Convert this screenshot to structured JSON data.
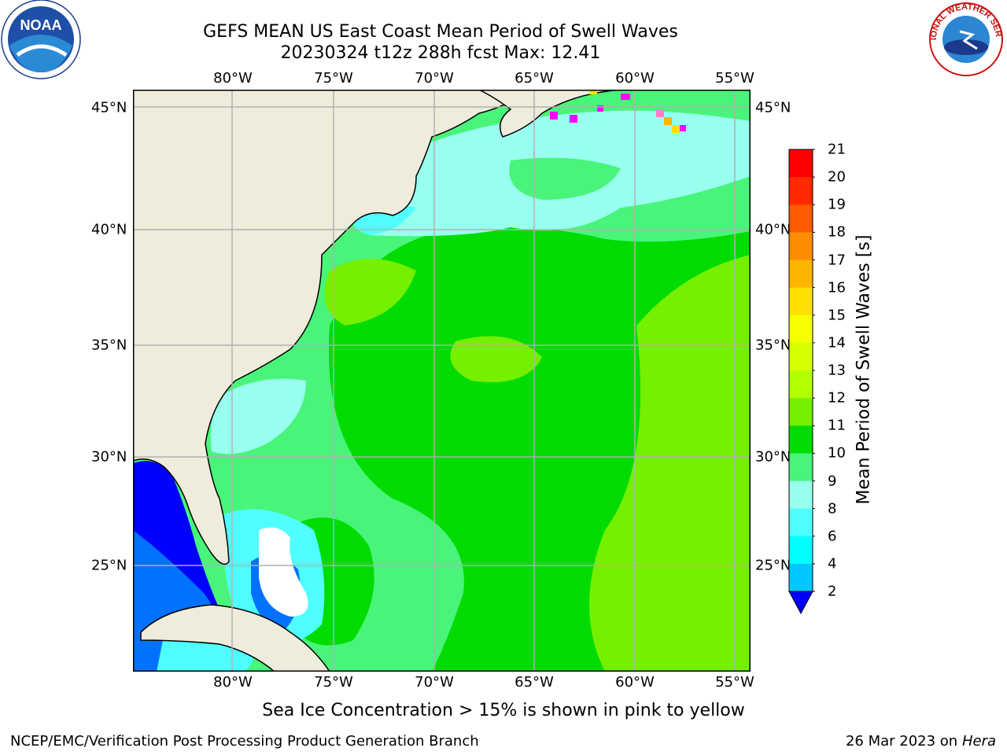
{
  "header": {
    "title_line1": "GEFS MEAN US East Coast Mean Period of Swell Waves",
    "title_line2": "20230324 t12z 288h fcst   Max: 12.41"
  },
  "map": {
    "lon_labels": [
      "80°W",
      "75°W",
      "70°W",
      "65°W",
      "60°W",
      "55°W"
    ],
    "lat_labels": [
      "45°N",
      "40°N",
      "35°N",
      "30°N",
      "25°N"
    ],
    "lon_range": [
      -85,
      -55
    ],
    "lat_range": [
      20,
      45
    ],
    "colors": {
      "land": "#efecdc",
      "grid": "#b0b0b0",
      "coast": "#000000"
    }
  },
  "colorbar": {
    "title": "Mean Period of Swell Waves [s]",
    "ticks": [
      "21",
      "20",
      "19",
      "18",
      "17",
      "16",
      "15",
      "14",
      "13",
      "12",
      "11",
      "10",
      "9",
      "8",
      "6",
      "4",
      "2"
    ],
    "colors": [
      "#ff0000",
      "#ff2a00",
      "#ff5a00",
      "#ff8c00",
      "#ffb400",
      "#ffe000",
      "#f5ff00",
      "#d7ff00",
      "#b3ff00",
      "#74f000",
      "#00dc00",
      "#48f57a",
      "#99ffee",
      "#4fffff",
      "#00ffff",
      "#00c8ff",
      "#0072ff"
    ],
    "under_color": "#0000ff"
  },
  "legend_note": "Sea Ice Concentration > 15% is shown in pink to yellow",
  "footer": {
    "credit": "NCEP/EMC/Verification Post Processing Product Generation Branch",
    "date": "26 Mar 2023 on",
    "host": "Hera"
  },
  "logos": {
    "noaa_text": "NOAA",
    "nws_text": "NATIONAL WEATHER SERVICE"
  }
}
